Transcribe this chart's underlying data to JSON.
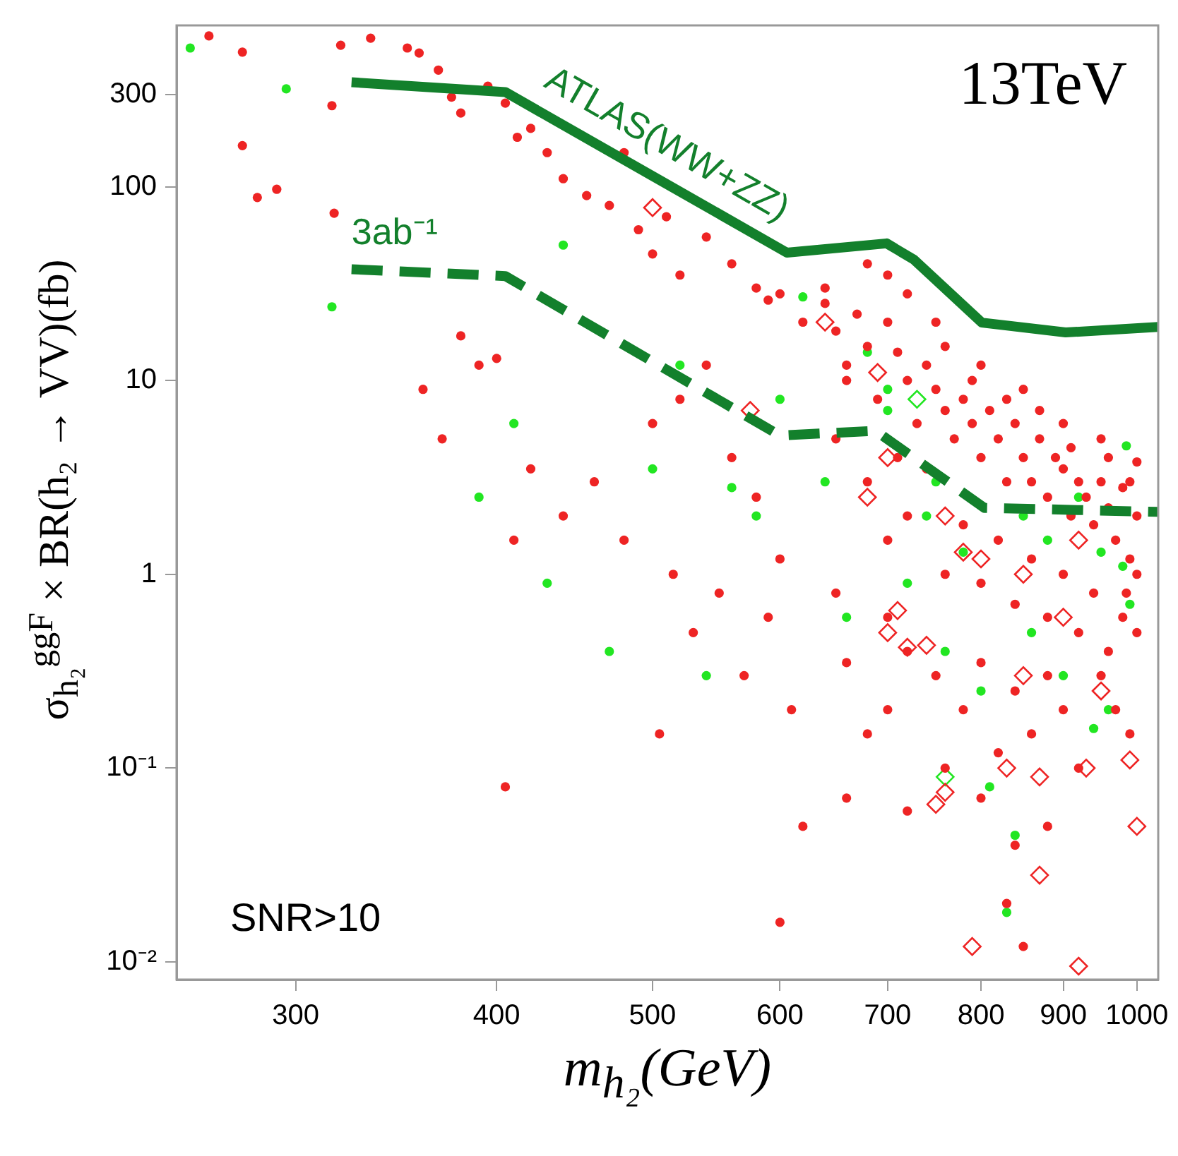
{
  "chart_data": {
    "type": "scatter",
    "xlabel": "m$_{h₂}$(GeV)",
    "ylabel": "σ$_{h₂}$$^{ggF}$ × BR(h₂ → VV)(fb)",
    "log": "xy",
    "grid": false,
    "legend": false,
    "xlim": [
      253,
      1031
    ],
    "xticks": [
      300,
      400,
      500,
      600,
      700,
      800,
      900,
      1000
    ],
    "ylim": [
      0.0081,
      680
    ],
    "yticks": [
      {
        "value": 0.01,
        "label": "10⁻²"
      },
      {
        "value": 0.1,
        "label": "10⁻¹"
      },
      1,
      10,
      100,
      300
    ],
    "annotations": [
      "13TeV",
      "SNR>10"
    ],
    "series": [
      {
        "marker": "circle",
        "color": "#ee2424",
        "x": [
          265,
          278,
          278,
          284,
          292,
          320,
          334,
          316,
          317,
          352,
          358,
          368,
          375,
          380,
          395,
          405,
          412,
          420,
          430,
          440,
          455,
          470,
          480,
          490,
          500,
          510,
          520,
          540,
          560,
          580,
          590,
          600,
          380,
          360,
          370,
          400,
          420,
          440,
          460,
          480,
          500,
          520,
          540,
          560,
          580,
          600,
          410,
          390,
          405,
          505,
          515,
          530,
          550,
          570,
          590,
          610,
          620,
          600,
          650,
          660,
          680,
          700,
          620,
          640,
          650,
          660,
          670,
          680,
          690,
          700,
          710,
          720,
          730,
          740,
          750,
          760,
          770,
          780,
          790,
          800,
          810,
          820,
          830,
          840,
          850,
          860,
          870,
          880,
          890,
          900,
          910,
          920,
          930,
          940,
          950,
          960,
          970,
          980,
          990,
          1000,
          650,
          680,
          700,
          720,
          740,
          760,
          780,
          800,
          820,
          840,
          860,
          880,
          900,
          920,
          940,
          960,
          980,
          1000,
          700,
          720,
          750,
          780,
          800,
          820,
          840,
          860,
          880,
          900,
          920,
          950,
          970,
          990,
          760,
          800,
          840,
          830,
          880,
          850,
          660,
          720,
          700,
          720,
          750,
          800,
          850,
          900,
          950,
          1000,
          680,
          640,
          660,
          710,
          760,
          790,
          830,
          870,
          910,
          960,
          990,
          1000,
          985
        ],
        "values": [
          600,
          495,
          163,
          88,
          97,
          537,
          584,
          262,
          73,
          520,
          490,
          400,
          290,
          240,
          330,
          270,
          180,
          200,
          150,
          110,
          90,
          80,
          150,
          60,
          45,
          70,
          35,
          55,
          40,
          30,
          26,
          28,
          17,
          9,
          5,
          13,
          3.5,
          2,
          3,
          1.5,
          6,
          8,
          12,
          4,
          2.5,
          1.2,
          1.5,
          12,
          0.08,
          0.15,
          1,
          0.5,
          0.8,
          0.3,
          0.6,
          0.2,
          0.05,
          0.016,
          0.8,
          0.35,
          0.15,
          0.2,
          20,
          25,
          18,
          12,
          22,
          15,
          8,
          20,
          14,
          10,
          6,
          12,
          9,
          7,
          5,
          8,
          6,
          4,
          7,
          5,
          3,
          6,
          4,
          3,
          5,
          2.5,
          4,
          3.5,
          2,
          3,
          2.5,
          1.8,
          3,
          2.2,
          1.5,
          2.8,
          1.2,
          2,
          5,
          3,
          1.5,
          2,
          3.5,
          1,
          1.8,
          0.9,
          1.5,
          0.7,
          1.2,
          0.6,
          1,
          0.5,
          0.8,
          0.4,
          0.6,
          0.5,
          0.6,
          0.4,
          0.3,
          0.2,
          0.35,
          0.12,
          0.25,
          0.15,
          0.3,
          0.2,
          0.1,
          0.3,
          0.2,
          0.15,
          0.1,
          0.07,
          0.04,
          0.02,
          0.05,
          0.012,
          0.07,
          0.06,
          35,
          28,
          20,
          12,
          9,
          6,
          5,
          3.8,
          40,
          30,
          10,
          4,
          15,
          10,
          8,
          7,
          4.5,
          4,
          3,
          1,
          0.8
        ]
      },
      {
        "marker": "circle",
        "color": "#22e622",
        "x": [
          258,
          296,
          316,
          410,
          440,
          470,
          500,
          520,
          540,
          560,
          580,
          600,
          620,
          640,
          660,
          680,
          700,
          720,
          740,
          760,
          780,
          800,
          810,
          830,
          840,
          860,
          880,
          900,
          920,
          940,
          960,
          980,
          985,
          990,
          700,
          750,
          850,
          950,
          430,
          390
        ],
        "values": [
          520,
          320,
          24,
          6,
          50,
          0.4,
          3.5,
          12,
          0.3,
          2.8,
          2,
          8,
          27,
          3,
          0.6,
          14,
          7,
          0.9,
          2,
          0.4,
          1.3,
          0.25,
          0.08,
          0.018,
          0.045,
          0.5,
          1.5,
          0.3,
          2.5,
          0.16,
          0.2,
          1.1,
          4.6,
          0.7,
          9,
          3,
          2,
          1.3,
          0.9,
          2.5
        ]
      },
      {
        "marker": "diamond",
        "color": "#ee2424",
        "x": [
          500,
          575,
          640,
          690,
          700,
          720,
          740,
          750,
          760,
          790,
          830,
          850,
          870,
          870,
          920,
          930,
          990,
          1000,
          680,
          700,
          760,
          800,
          850,
          900,
          950,
          710,
          780,
          920
        ],
        "values": [
          78,
          7,
          20,
          11,
          0.5,
          0.42,
          0.43,
          0.065,
          0.075,
          0.012,
          0.1,
          0.3,
          0.09,
          0.028,
          0.0095,
          0.1,
          0.11,
          0.05,
          2.5,
          4,
          2,
          1.2,
          1,
          0.6,
          0.25,
          0.65,
          1.3,
          1.5
        ]
      },
      {
        "marker": "diamond",
        "color": "#22e622",
        "x": [
          730,
          760
        ],
        "values": [
          8,
          0.09
        ]
      },
      {
        "type": "line",
        "name": "ATLAS(WW+ZZ)",
        "marker": "none",
        "line_style": "solid",
        "color": "#13802c",
        "x": [
          325,
          405,
          606,
          699,
          727,
          801,
          903,
          1031
        ],
        "values": [
          346,
          308,
          45.7,
          51,
          42,
          19.9,
          17.7,
          18.9
        ]
      },
      {
        "type": "line",
        "name": "3ab⁻¹",
        "marker": "none",
        "line_style": "dashed",
        "color": "#13802c",
        "x": [
          325,
          405,
          600,
          688,
          804,
          1031
        ],
        "values": [
          37.5,
          34.6,
          5.2,
          5.5,
          2.2,
          2.1
        ]
      }
    ]
  }
}
